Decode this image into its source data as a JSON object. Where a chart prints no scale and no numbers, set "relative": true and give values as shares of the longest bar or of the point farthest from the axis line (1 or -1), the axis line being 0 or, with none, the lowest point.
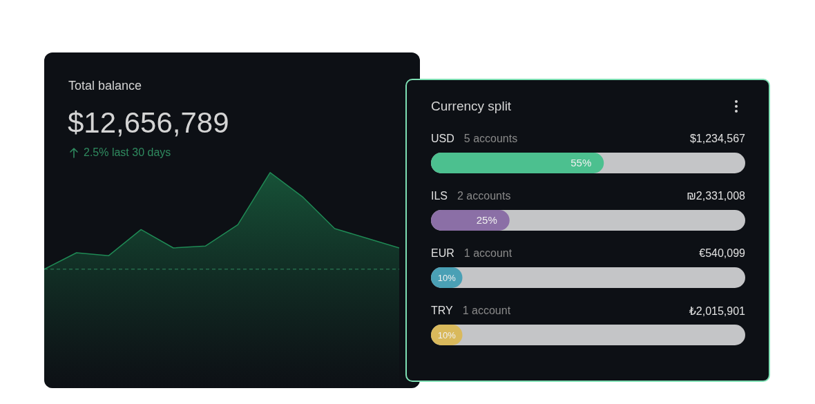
{
  "chart_data": [
    {
      "type": "area",
      "title": "Total balance",
      "subtitle": "$12,656,789",
      "annotations": [
        "2.5% last 30 days"
      ],
      "relative": true,
      "categories": [
        null,
        null,
        null,
        null,
        null,
        null,
        null,
        null,
        null,
        null,
        null,
        null
      ],
      "values": [
        0,
        0.17,
        0.14,
        0.41,
        0.22,
        0.24,
        0.46,
        1,
        0.75,
        0.42,
        0.32,
        0.22
      ],
      "color": "#1f8a55",
      "ref_lines": [
        {
          "axis": "y",
          "value": 0,
          "color": "#2f8a5f",
          "line_style": "dashed"
        }
      ]
    },
    {
      "type": "bar",
      "orientation": "horizontal",
      "title": "Currency split",
      "categories": [
        "USD",
        "ILS",
        "EUR",
        "TRY"
      ],
      "values": [
        55,
        25,
        10,
        10
      ],
      "colors": [
        "#4cc08f",
        "#8b6fa6",
        "#4aa0b5",
        "#d9b95c"
      ],
      "value_labels": [
        "55%",
        "25%",
        "10%",
        "10%"
      ],
      "xlim": [
        0,
        100
      ],
      "tick_labels": false,
      "annotations": [
        "5 accounts",
        "$1,234,567",
        "2 accounts",
        "₪2,331,008",
        "1 account",
        "€540,099",
        "1 account",
        "₺2,015,901"
      ]
    }
  ]
}
